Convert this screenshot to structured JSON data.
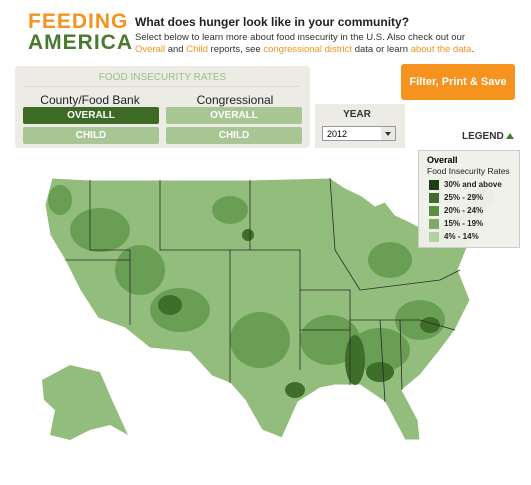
{
  "logo": {
    "top": "FEEDING",
    "bottom": "AMERICA"
  },
  "header": {
    "title": "What does hunger look like in your community?",
    "intro": [
      "Select below to learn more about food insecurity in the U.S. Also check out our ",
      "Overall",
      " and ",
      "Child",
      " reports, see ",
      "congressional district",
      " data or learn ",
      "about the data",
      "."
    ]
  },
  "panel": {
    "title": "FOOD INSECURITY RATES",
    "groups": [
      {
        "label": "County/Food Bank",
        "buttons": [
          "OVERALL",
          "CHILD"
        ]
      },
      {
        "label": "Congressional",
        "buttons": [
          "OVERALL",
          "CHILD"
        ]
      }
    ]
  },
  "year": {
    "label": "YEAR",
    "selected": "2012"
  },
  "action": "Filter, Print & Save",
  "legend": {
    "toggle": "LEGEND",
    "title": "Overall",
    "subtitle": "Food Insecurity Rates",
    "items": [
      {
        "label": "30% and above",
        "color": "#1f3d14"
      },
      {
        "label": "25% - 29%",
        "color": "#3e6e29"
      },
      {
        "label": "20% - 24%",
        "color": "#5b8c43"
      },
      {
        "label": "15% - 19%",
        "color": "#7fa966"
      },
      {
        "label": "4% - 14%",
        "color": "#b5d1a1"
      }
    ]
  }
}
